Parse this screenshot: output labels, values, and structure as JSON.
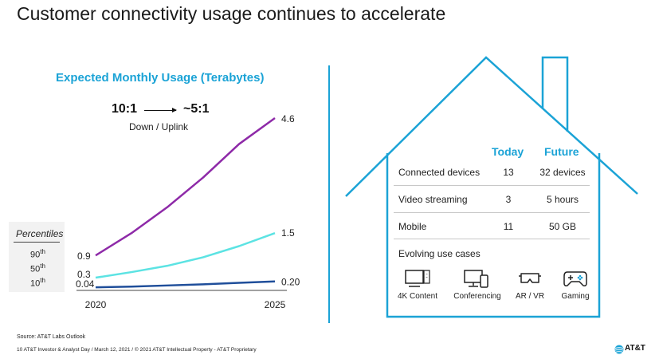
{
  "page": {
    "title": "Customer connectivity usage continues to accelerate",
    "source": "Source: AT&T Labs Outlook",
    "footer": "10     AT&T Investor & Analyst Day / March 12, 2021 / © 2021 AT&T Intellectual Property - AT&T Proprietary",
    "logo_text": "AT&T"
  },
  "chart_data": {
    "type": "line",
    "title": "Expected Monthly Usage (Terabytes)",
    "x": [
      2020,
      2021,
      2022,
      2023,
      2024,
      2025
    ],
    "x_tick_labels": [
      "2020",
      "2025"
    ],
    "ylim": [
      0,
      5
    ],
    "series": [
      {
        "name": "90th",
        "color": "#8e2aa8",
        "values": [
          0.9,
          1.5,
          2.2,
          3.0,
          3.9,
          4.6
        ],
        "start_label": "0.9",
        "end_label": "4.6"
      },
      {
        "name": "50th",
        "color": "#5ce3e3",
        "values": [
          0.3,
          0.45,
          0.62,
          0.85,
          1.15,
          1.5
        ],
        "start_label": "0.3",
        "end_label": "1.5"
      },
      {
        "name": "10th",
        "color": "#1f4e9a",
        "values": [
          0.04,
          0.06,
          0.09,
          0.12,
          0.16,
          0.2
        ],
        "start_label": "0.04",
        "end_label": "0.20"
      }
    ],
    "ratio_from": "10:1",
    "ratio_to": "~5:1",
    "ratio_caption": "Down / Uplink",
    "legend_title": "Percentiles",
    "grid": false
  },
  "legend": [
    {
      "num": "90",
      "suffix": "th"
    },
    {
      "num": "50",
      "suffix": "th"
    },
    {
      "num": "10",
      "suffix": "th"
    }
  ],
  "table": {
    "col_today": "Today",
    "col_future": "Future",
    "rows": [
      {
        "label": "Connected devices",
        "today": "13",
        "future": "32 devices"
      },
      {
        "label": "Video streaming",
        "today": "3",
        "future": "5 hours"
      },
      {
        "label": "Mobile",
        "today": "11",
        "future": "50 GB"
      }
    ],
    "use_cases_title": "Evolving use cases",
    "use_cases": [
      {
        "label": "4K Content",
        "icon": "tv-icon"
      },
      {
        "label": "Conferencing",
        "icon": "monitor-phone-icon"
      },
      {
        "label": "AR / VR",
        "icon": "vr-headset-icon"
      },
      {
        "label": "Gaming",
        "icon": "gamepad-icon"
      }
    ]
  },
  "colors": {
    "accent": "#1ba3d6",
    "p90": "#8e2aa8",
    "p50": "#5ce3e3",
    "p10": "#1f4e9a"
  }
}
